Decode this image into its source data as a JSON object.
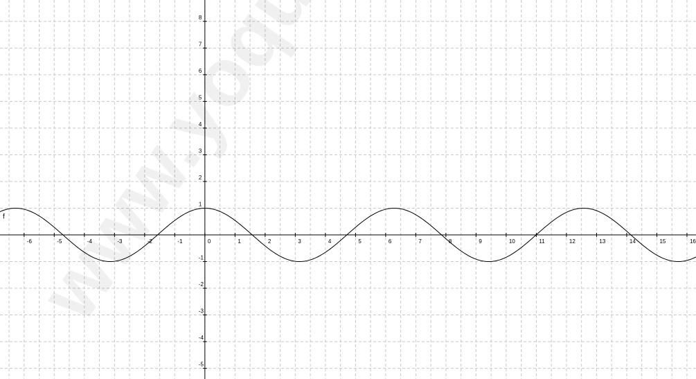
{
  "watermark": "www.yoquieroaprobar.es",
  "colors": {
    "background": "#ffffff",
    "grid": "#c8c8c8",
    "axis": "#000000",
    "curve": "#000000"
  },
  "chart_data": {
    "type": "line",
    "title": "",
    "xlabel": "",
    "ylabel": "",
    "xlim": [
      -6.8,
      16.3
    ],
    "ylim": [
      -5.4,
      8.8
    ],
    "grid": true,
    "grid_style": "dashed",
    "x_ticks": [
      -6,
      -5,
      -4,
      -3,
      -2,
      -1,
      0,
      1,
      2,
      3,
      4,
      5,
      6,
      7,
      8,
      9,
      10,
      11,
      12,
      13,
      14,
      15,
      16
    ],
    "y_ticks": [
      -5,
      -4,
      -3,
      -2,
      -1,
      1,
      2,
      3,
      4,
      5,
      6,
      7,
      8
    ],
    "origin_label": "0",
    "series": [
      {
        "name": "f",
        "function": "cos(x)",
        "amplitude": 1,
        "period": 6.2832,
        "x_range": [
          -6.8,
          16.3
        ],
        "color": "#000000",
        "maxima": [
          [
            -6.2832,
            1
          ],
          [
            0,
            1
          ],
          [
            6.2832,
            1
          ],
          [
            12.5664,
            1
          ]
        ],
        "minima": [
          [
            -3.1416,
            -1
          ],
          [
            3.1416,
            -1
          ],
          [
            9.4248,
            -1
          ],
          [
            15.708,
            -1
          ]
        ],
        "zeros": [
          -4.7124,
          -1.5708,
          1.5708,
          4.7124,
          7.854,
          10.9956,
          14.1372
        ]
      }
    ]
  }
}
